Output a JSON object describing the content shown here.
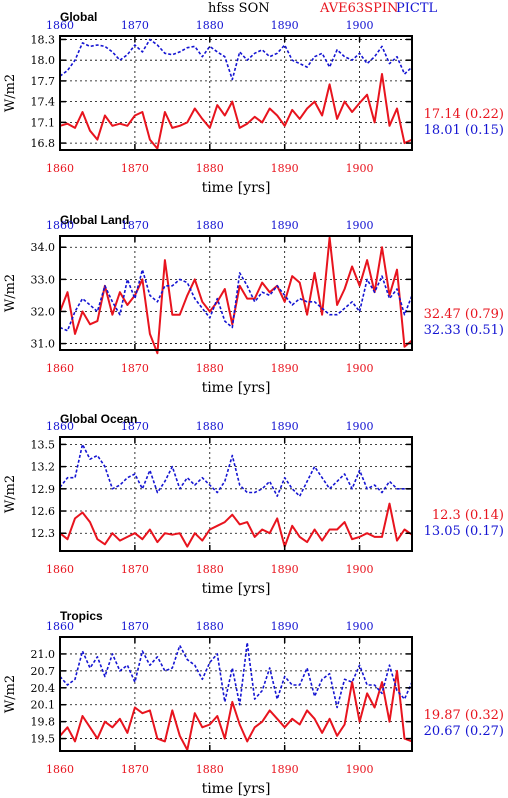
{
  "header": {
    "left_label": "Global",
    "center_label": "hfss SON",
    "red_label": "AVE63SPIN",
    "blue_label": "PICTL"
  },
  "colors": {
    "red": "#e8141e",
    "blue": "#1414d2",
    "grid": "#000000"
  },
  "chart_data": [
    {
      "type": "line",
      "title": "Global",
      "xlabel": "time [yrs]",
      "ylabel": "W/m2",
      "xlim": [
        1860,
        1907
      ],
      "ylim": [
        16.7,
        18.35
      ],
      "x_ticks": [
        1860,
        1870,
        1880,
        1890,
        1900
      ],
      "y_ticks": [
        "16.8",
        "17.1",
        "17.4",
        "17.7",
        "18.0",
        "18.3"
      ],
      "grid": true,
      "x": [
        1860,
        1861,
        1862,
        1863,
        1864,
        1865,
        1866,
        1867,
        1868,
        1869,
        1870,
        1871,
        1872,
        1873,
        1874,
        1875,
        1876,
        1877,
        1878,
        1879,
        1880,
        1881,
        1882,
        1883,
        1884,
        1885,
        1886,
        1887,
        1888,
        1889,
        1890,
        1891,
        1892,
        1893,
        1894,
        1895,
        1896,
        1897,
        1898,
        1899,
        1900,
        1901,
        1902,
        1903,
        1904,
        1905,
        1906,
        1907
      ],
      "series": [
        {
          "name": "AVE63SPIN",
          "color": "red",
          "values": [
            17.05,
            17.08,
            17.02,
            17.25,
            16.98,
            16.85,
            17.2,
            17.05,
            17.08,
            17.05,
            17.2,
            17.25,
            16.85,
            16.72,
            17.25,
            17.02,
            17.05,
            17.1,
            17.3,
            17.15,
            17.02,
            17.35,
            17.2,
            17.4,
            17.02,
            17.08,
            17.18,
            17.1,
            17.3,
            17.2,
            17.05,
            17.28,
            17.15,
            17.3,
            17.4,
            17.2,
            17.65,
            17.15,
            17.4,
            17.25,
            17.38,
            17.5,
            17.1,
            17.8,
            17.05,
            17.3,
            16.8,
            16.85
          ],
          "summary": "17.14 (0.22)"
        },
        {
          "name": "PICTL",
          "color": "blue",
          "values": [
            17.77,
            17.85,
            18.0,
            18.25,
            18.2,
            18.22,
            18.2,
            18.12,
            18.0,
            18.08,
            18.22,
            18.12,
            18.3,
            18.22,
            18.1,
            18.08,
            18.12,
            18.18,
            18.2,
            18.05,
            18.2,
            18.12,
            18.05,
            17.72,
            18.12,
            18.0,
            18.1,
            18.15,
            18.05,
            18.1,
            18.22,
            18.0,
            17.95,
            17.9,
            18.05,
            18.1,
            17.9,
            18.15,
            18.05,
            18.0,
            18.1,
            17.95,
            18.05,
            18.2,
            17.95,
            18.05,
            17.8,
            17.9
          ],
          "summary": "18.01 (0.15)"
        }
      ]
    },
    {
      "type": "line",
      "title": "Global Land",
      "xlabel": "time [yrs]",
      "ylabel": "W/m2",
      "xlim": [
        1860,
        1907
      ],
      "ylim": [
        30.8,
        34.35
      ],
      "x_ticks": [
        1860,
        1870,
        1880,
        1890,
        1900
      ],
      "y_ticks": [
        "31.0",
        "32.0",
        "33.0",
        "34.0"
      ],
      "grid": true,
      "x": [
        1860,
        1861,
        1862,
        1863,
        1864,
        1865,
        1866,
        1867,
        1868,
        1869,
        1870,
        1871,
        1872,
        1873,
        1874,
        1875,
        1876,
        1877,
        1878,
        1879,
        1880,
        1881,
        1882,
        1883,
        1884,
        1885,
        1886,
        1887,
        1888,
        1889,
        1890,
        1891,
        1892,
        1893,
        1894,
        1895,
        1896,
        1897,
        1898,
        1899,
        1900,
        1901,
        1902,
        1903,
        1904,
        1905,
        1906,
        1907
      ],
      "series": [
        {
          "name": "AVE63SPIN",
          "color": "red",
          "values": [
            32.0,
            32.6,
            31.3,
            32.0,
            31.6,
            31.7,
            32.8,
            31.9,
            32.6,
            32.2,
            32.5,
            33.0,
            31.3,
            30.7,
            33.6,
            31.9,
            31.9,
            32.5,
            33.0,
            32.3,
            32.0,
            32.3,
            32.7,
            31.6,
            32.8,
            32.4,
            32.4,
            32.9,
            32.6,
            32.8,
            32.3,
            33.1,
            32.9,
            31.9,
            33.2,
            31.9,
            34.3,
            32.2,
            32.7,
            33.4,
            32.8,
            33.6,
            32.6,
            34.0,
            32.5,
            33.3,
            30.9,
            31.1
          ],
          "summary": "32.47 (0.79)"
        },
        {
          "name": "PICTL",
          "color": "blue",
          "values": [
            31.5,
            31.4,
            32.0,
            32.4,
            32.2,
            32.0,
            32.8,
            32.3,
            31.9,
            33.0,
            32.4,
            33.3,
            32.5,
            32.3,
            32.8,
            32.8,
            33.0,
            32.9,
            32.4,
            32.1,
            31.8,
            32.4,
            31.7,
            31.5,
            33.2,
            32.8,
            32.3,
            32.6,
            32.5,
            32.8,
            32.5,
            32.2,
            32.4,
            32.3,
            32.3,
            32.1,
            31.9,
            31.9,
            32.1,
            32.3,
            32.0,
            33.0,
            32.6,
            33.1,
            32.4,
            32.7,
            31.9,
            32.5
          ],
          "summary": "32.33 (0.51)"
        }
      ]
    },
    {
      "type": "line",
      "title": "Global Ocean",
      "xlabel": "time [yrs]",
      "ylabel": "W/m2",
      "xlim": [
        1860,
        1907
      ],
      "ylim": [
        12.06,
        13.6
      ],
      "x_ticks": [
        1860,
        1870,
        1880,
        1890,
        1900
      ],
      "y_ticks": [
        "12.3",
        "12.6",
        "12.9",
        "13.2",
        "13.5"
      ],
      "grid": true,
      "x": [
        1860,
        1861,
        1862,
        1863,
        1864,
        1865,
        1866,
        1867,
        1868,
        1869,
        1870,
        1871,
        1872,
        1873,
        1874,
        1875,
        1876,
        1877,
        1878,
        1879,
        1880,
        1881,
        1882,
        1883,
        1884,
        1885,
        1886,
        1887,
        1888,
        1889,
        1890,
        1891,
        1892,
        1893,
        1894,
        1895,
        1896,
        1897,
        1898,
        1899,
        1900,
        1901,
        1902,
        1903,
        1904,
        1905,
        1906,
        1907
      ],
      "series": [
        {
          "name": "AVE63SPIN",
          "color": "red",
          "values": [
            12.3,
            12.22,
            12.5,
            12.58,
            12.45,
            12.22,
            12.15,
            12.3,
            12.2,
            12.25,
            12.3,
            12.22,
            12.35,
            12.18,
            12.3,
            12.28,
            12.3,
            12.12,
            12.3,
            12.2,
            12.35,
            12.4,
            12.45,
            12.55,
            12.42,
            12.45,
            12.25,
            12.35,
            12.3,
            12.5,
            12.12,
            12.4,
            12.25,
            12.18,
            12.35,
            12.2,
            12.35,
            12.35,
            12.45,
            12.22,
            12.25,
            12.3,
            12.25,
            12.25,
            12.7,
            12.2,
            12.35,
            12.28
          ],
          "summary": "12.3 (0.14)"
        },
        {
          "name": "PICTL",
          "color": "blue",
          "values": [
            12.92,
            13.05,
            13.05,
            13.5,
            13.3,
            13.35,
            13.2,
            12.9,
            12.95,
            13.05,
            13.1,
            12.9,
            13.15,
            12.85,
            13.0,
            13.2,
            12.9,
            13.05,
            12.95,
            13.05,
            12.95,
            12.85,
            13.0,
            13.35,
            12.95,
            12.85,
            12.85,
            12.9,
            13.0,
            12.8,
            13.05,
            12.9,
            12.8,
            13.0,
            13.2,
            13.05,
            12.9,
            13.0,
            13.1,
            12.9,
            13.15,
            12.9,
            12.95,
            12.85,
            13.0,
            12.9,
            12.9,
            12.9
          ],
          "summary": "13.05 (0.17)"
        }
      ]
    },
    {
      "type": "line",
      "title": "Tropics",
      "xlabel": "time [yrs]",
      "ylabel": "W/m2",
      "xlim": [
        1860,
        1907
      ],
      "ylim": [
        19.28,
        21.3
      ],
      "x_ticks": [
        1860,
        1870,
        1880,
        1890,
        1900
      ],
      "y_ticks": [
        "19.5",
        "19.8",
        "20.1",
        "20.4",
        "20.7",
        "21.0"
      ],
      "grid": true,
      "x": [
        1860,
        1861,
        1862,
        1863,
        1864,
        1865,
        1866,
        1867,
        1868,
        1869,
        1870,
        1871,
        1872,
        1873,
        1874,
        1875,
        1876,
        1877,
        1878,
        1879,
        1880,
        1881,
        1882,
        1883,
        1884,
        1885,
        1886,
        1887,
        1888,
        1889,
        1890,
        1891,
        1892,
        1893,
        1894,
        1895,
        1896,
        1897,
        1898,
        1899,
        1900,
        1901,
        1902,
        1903,
        1904,
        1905,
        1906,
        1907
      ],
      "series": [
        {
          "name": "AVE63SPIN",
          "color": "red",
          "values": [
            19.55,
            19.7,
            19.45,
            19.9,
            19.7,
            19.5,
            19.8,
            19.7,
            19.85,
            19.6,
            20.05,
            19.95,
            20.0,
            19.5,
            19.45,
            20.0,
            19.55,
            19.3,
            19.95,
            19.7,
            19.75,
            19.9,
            19.5,
            20.15,
            19.75,
            19.45,
            19.7,
            19.8,
            20.0,
            19.85,
            19.7,
            19.85,
            19.75,
            20.0,
            19.85,
            19.6,
            19.85,
            19.55,
            19.75,
            20.5,
            19.8,
            20.3,
            20.05,
            20.5,
            19.8,
            20.7,
            19.5,
            19.45
          ],
          "summary": "19.87 (0.32)"
        },
        {
          "name": "PICTL",
          "color": "blue",
          "values": [
            20.6,
            20.45,
            20.55,
            21.05,
            20.75,
            20.95,
            20.6,
            21.0,
            20.7,
            20.8,
            20.5,
            21.05,
            20.8,
            20.95,
            20.7,
            20.75,
            21.15,
            20.9,
            20.8,
            20.55,
            20.85,
            21.0,
            20.15,
            20.75,
            20.1,
            21.2,
            20.2,
            20.35,
            20.75,
            20.2,
            20.6,
            20.45,
            20.45,
            20.75,
            20.25,
            20.55,
            20.65,
            20.05,
            20.55,
            20.5,
            20.8,
            20.45,
            20.45,
            20.3,
            20.8,
            20.35,
            20.2,
            20.5
          ],
          "summary": "20.67 (0.27)"
        }
      ]
    }
  ]
}
